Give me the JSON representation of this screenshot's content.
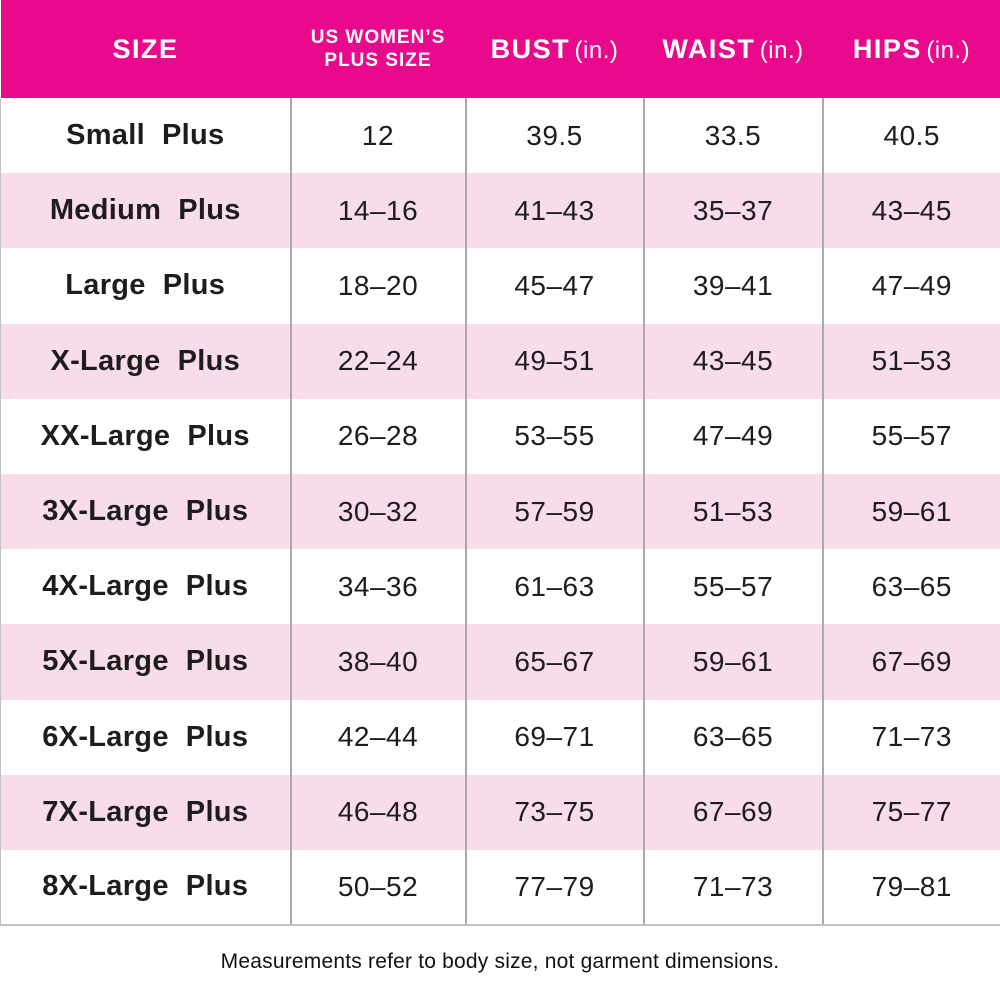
{
  "colors": {
    "header-bg": "#E9098C",
    "row-alt-bg": "#F9DCEA",
    "text": "#1D1D1D",
    "divider": "#A9A9A9",
    "outer-border": "#C2C2C2"
  },
  "header": {
    "size": "SIZE",
    "us_line1": "US WOMEN’S",
    "us_line2": "PLUS SIZE",
    "bust": "BUST",
    "bust_unit": "(in.)",
    "waist": "WAIST",
    "waist_unit": "(in.)",
    "hips": "HIPS",
    "hips_unit": "(in.)"
  },
  "chart_data": {
    "type": "table",
    "title": "Plus size chart",
    "columns": [
      "SIZE",
      "US WOMEN'S PLUS SIZE",
      "BUST (in.)",
      "WAIST (in.)",
      "HIPS (in.)"
    ],
    "rows": [
      [
        "Small Plus",
        "12",
        "39.5",
        "33.5",
        "40.5"
      ],
      [
        "Medium Plus",
        "14–16",
        "41–43",
        "35–37",
        "43–45"
      ],
      [
        "Large Plus",
        "18–20",
        "45–47",
        "39–41",
        "47–49"
      ],
      [
        "X-Large Plus",
        "22–24",
        "49–51",
        "43–45",
        "51–53"
      ],
      [
        "XX-Large Plus",
        "26–28",
        "53–55",
        "47–49",
        "55–57"
      ],
      [
        "3X-Large Plus",
        "30–32",
        "57–59",
        "51–53",
        "59–61"
      ],
      [
        "4X-Large Plus",
        "34–36",
        "61–63",
        "55–57",
        "63–65"
      ],
      [
        "5X-Large Plus",
        "38–40",
        "65–67",
        "59–61",
        "67–69"
      ],
      [
        "6X-Large Plus",
        "42–44",
        "69–71",
        "63–65",
        "71–73"
      ],
      [
        "7X-Large Plus",
        "46–48",
        "73–75",
        "67–69",
        "75–77"
      ],
      [
        "8X-Large Plus",
        "50–52",
        "77–79",
        "71–73",
        "79–81"
      ]
    ],
    "footnote": "Measurements refer to body size, not garment dimensions.",
    "layout": {
      "alternating_rows": true,
      "header_color": "#E9098C",
      "alt_row_color": "#F9DCEA"
    }
  },
  "footer": {
    "note": "Measurements refer to body size, not garment dimensions."
  }
}
